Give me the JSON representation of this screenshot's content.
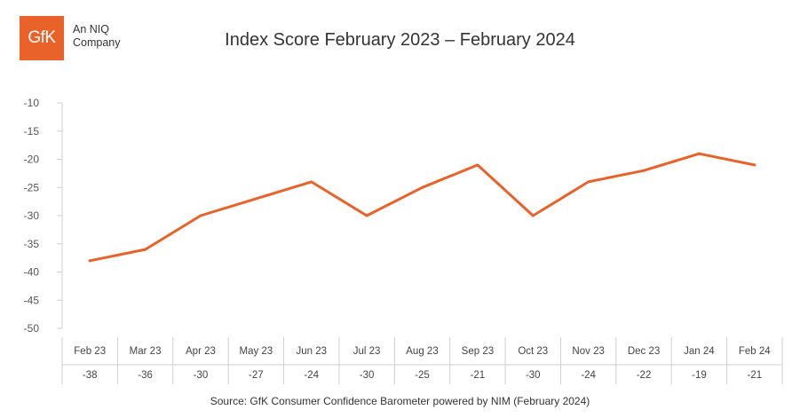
{
  "logo": {
    "mark": "GfK",
    "sub_line1": "An NIQ",
    "sub_line2": "Company",
    "brand_color": "#e8622a"
  },
  "chart_data": {
    "type": "line",
    "title": "Index Score February 2023 – February 2024",
    "categories": [
      "Feb 23",
      "Mar 23",
      "Apr 23",
      "May 23",
      "Jun 23",
      "Jul 23",
      "Aug 23",
      "Sep 23",
      "Oct 23",
      "Nov 23",
      "Dec 23",
      "Jan 24",
      "Feb 24"
    ],
    "series": [
      {
        "values": [
          -38,
          -36,
          -30,
          -27,
          -24,
          -30,
          -25,
          -21,
          -30,
          -24,
          -22,
          -19,
          -21
        ],
        "color": "#e8622a"
      }
    ],
    "ylim": [
      -50,
      -10
    ],
    "yticks": [
      -10,
      -15,
      -20,
      -25,
      -30,
      -35,
      -40,
      -45,
      -50
    ],
    "xlabel": "",
    "ylabel": "",
    "grid": false,
    "data_table": true
  },
  "source": "Source: GfK Consumer Confidence Barometer powered by NIM (February 2024)"
}
